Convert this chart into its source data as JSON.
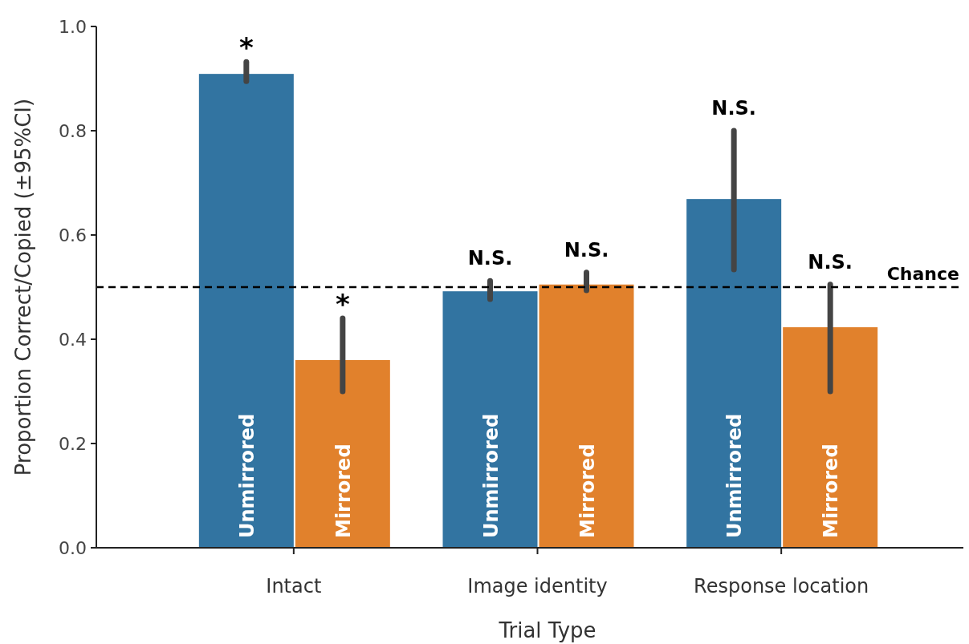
{
  "chart_data": {
    "type": "bar",
    "xlabel": "Trial Type",
    "ylabel": "Proportion Correct/Copied (±95%CI)",
    "categories": [
      "Intact",
      "Image identity",
      "Response location"
    ],
    "series": [
      {
        "name": "Unmirrored",
        "color": "#3274a1",
        "values": [
          0.909,
          0.492,
          0.669
        ],
        "errors": [
          [
            0.895,
            0.932
          ],
          [
            0.477,
            0.512
          ],
          [
            0.534,
            0.8
          ]
        ]
      },
      {
        "name": "Mirrored",
        "color": "#e1812c",
        "values": [
          0.36,
          0.505,
          0.423
        ],
        "errors": [
          [
            0.3,
            0.44
          ],
          [
            0.494,
            0.528
          ],
          [
            0.3,
            0.505
          ]
        ]
      }
    ],
    "ylim": [
      0,
      1
    ],
    "yticks": [
      {
        "value": 0,
        "label": "0.0"
      },
      {
        "value": 0.2,
        "label": "0.2"
      },
      {
        "value": 0.4,
        "label": "0.4"
      },
      {
        "value": 0.6,
        "label": "0.6"
      },
      {
        "value": 0.8,
        "label": "0.8"
      },
      {
        "value": 1,
        "label": "1.0"
      }
    ],
    "ref_lines": [
      {
        "axis": "y",
        "value": 0.5,
        "label": "Chance",
        "color": "#000000",
        "line_style": "dashed"
      }
    ],
    "annotations": [
      "*",
      "*",
      "N.S.",
      "N.S.",
      "N.S.",
      "N.S."
    ],
    "grid": false,
    "legend": false
  }
}
